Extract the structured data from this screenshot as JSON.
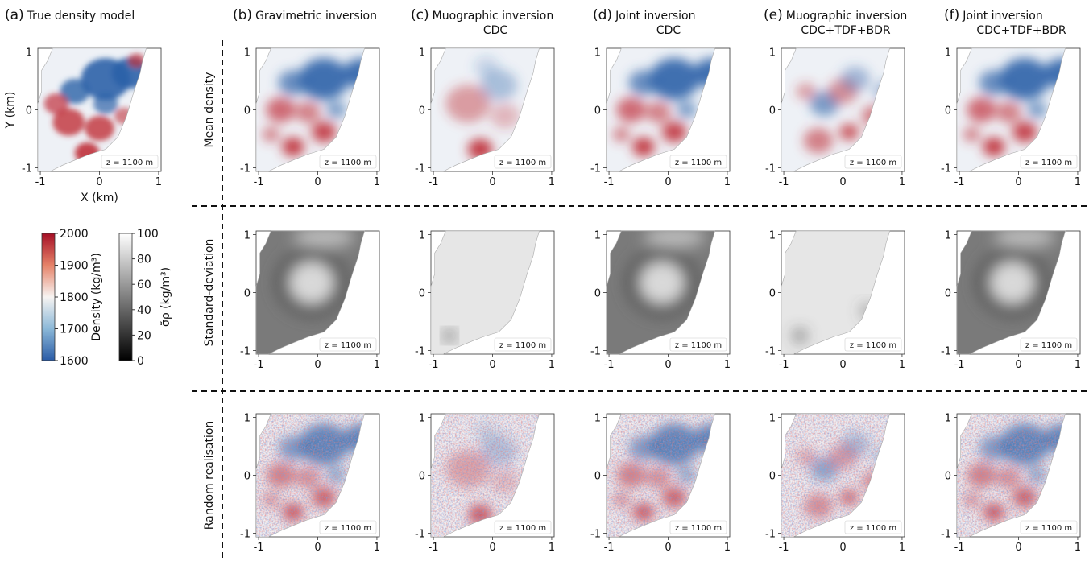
{
  "panels": [
    {
      "letter": "(a)",
      "title": "True density model",
      "subtitle": ""
    },
    {
      "letter": "(b)",
      "title": "Gravimetric inversion",
      "subtitle": ""
    },
    {
      "letter": "(c)",
      "title": "Muographic inversion",
      "subtitle": "CDC"
    },
    {
      "letter": "(d)",
      "title": "Joint inversion",
      "subtitle": "CDC"
    },
    {
      "letter": "(e)",
      "title": "Muographic inversion",
      "subtitle": "CDC+TDF+BDR"
    },
    {
      "letter": "(f)",
      "title": "Joint inversion",
      "subtitle": "CDC+TDF+BDR"
    }
  ],
  "row_labels": [
    "Mean density",
    "Standard-deviation",
    "Random realisation"
  ],
  "axes": {
    "x_label": "X (km)",
    "y_label": "Y (km)",
    "ticks": [
      "-1",
      "0",
      "1"
    ],
    "depth_label": "z = 1100 m"
  },
  "colorbars": {
    "density": {
      "label": "Density (kg/m³)",
      "ticks": [
        "2000",
        "1900",
        "1800",
        "1700",
        "1600"
      ],
      "range": [
        1600,
        2000
      ],
      "colors": [
        "#2c5ea8",
        "#f7f7f7",
        "#b2182b"
      ]
    },
    "sigma": {
      "label": "σ̃ρ (kg/m³)",
      "ticks": [
        "100",
        "80",
        "60",
        "40",
        "20",
        "0"
      ],
      "range": [
        0,
        100
      ],
      "colors": [
        "#000000",
        "#ffffff"
      ]
    }
  },
  "colors": {
    "red": "#c0303a",
    "blue": "#2c62a8",
    "grey_dark": "#555555"
  }
}
